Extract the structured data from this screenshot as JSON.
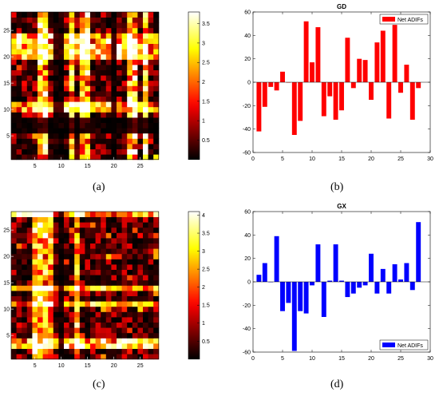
{
  "captions": {
    "a": "(a)",
    "b": "(b)",
    "c": "(c)",
    "d": "(d)"
  },
  "chart_data": [
    {
      "id": "a",
      "type": "heatmap",
      "rows": 28,
      "cols": 28,
      "x_ticks": [
        5,
        10,
        15,
        20,
        25
      ],
      "y_ticks": [
        5,
        10,
        15,
        20,
        25
      ],
      "colorbar": {
        "ticks": [
          0.5,
          1,
          1.5,
          2,
          2.5,
          3,
          3.5
        ],
        "range": [
          0,
          3.8
        ]
      },
      "colormap": "hot",
      "strong_rows": [
        10,
        11,
        20,
        21,
        22,
        23,
        24
      ],
      "strong_cols": [
        6,
        7,
        12,
        14,
        15,
        23,
        24,
        26
      ],
      "empty_rows": [
        6,
        7,
        8
      ],
      "empty_cols": [
        9,
        10,
        20
      ]
    },
    {
      "id": "b",
      "type": "bar",
      "title": "GD",
      "legend": {
        "label": "Net ADIFs",
        "position": "top-right"
      },
      "color": "#ff0000",
      "xlim": [
        0,
        30
      ],
      "ylim": [
        -60,
        60
      ],
      "x_ticks": [
        0,
        5,
        10,
        15,
        20,
        25,
        30
      ],
      "y_ticks": [
        -60,
        -40,
        -20,
        0,
        20,
        40,
        60
      ],
      "x": [
        1,
        2,
        3,
        4,
        5,
        6,
        7,
        8,
        9,
        10,
        11,
        12,
        13,
        14,
        15,
        16,
        17,
        18,
        19,
        20,
        21,
        22,
        23,
        24,
        25,
        26,
        27,
        28
      ],
      "values": [
        -42,
        -21,
        -4,
        -7,
        9,
        0,
        -45,
        -33,
        52,
        17,
        47,
        -29,
        -12,
        -32,
        -24,
        38,
        -5,
        20,
        19,
        -15,
        34,
        44,
        -31,
        49,
        -9,
        15,
        -32,
        -5
      ]
    },
    {
      "id": "c",
      "type": "heatmap",
      "rows": 28,
      "cols": 28,
      "x_ticks": [
        5,
        10,
        15,
        20,
        25
      ],
      "y_ticks": [
        5,
        10,
        15,
        20,
        25
      ],
      "colorbar": {
        "ticks": [
          0.5,
          1,
          1.5,
          2,
          2.5,
          3,
          3.5,
          4
        ],
        "range": [
          0,
          4.1
        ]
      },
      "colormap": "hot",
      "strong_rows": [
        3,
        4,
        11,
        14,
        28
      ],
      "strong_cols": [
        5,
        6,
        7,
        8,
        13
      ],
      "empty_rows": [],
      "empty_cols": [
        10
      ]
    },
    {
      "id": "d",
      "type": "bar",
      "title": "GX",
      "legend": {
        "label": "Net ADIFs",
        "position": "bottom-right"
      },
      "color": "#0000ff",
      "xlim": [
        0,
        30
      ],
      "ylim": [
        -60,
        60
      ],
      "x_ticks": [
        0,
        5,
        10,
        15,
        20,
        25,
        30
      ],
      "y_ticks": [
        -60,
        -40,
        -20,
        0,
        20,
        40,
        60
      ],
      "x": [
        1,
        2,
        3,
        4,
        5,
        6,
        7,
        8,
        9,
        10,
        11,
        12,
        13,
        14,
        15,
        16,
        17,
        18,
        19,
        20,
        21,
        22,
        23,
        24,
        25,
        26,
        27,
        28
      ],
      "values": [
        6,
        16,
        0,
        39,
        -25,
        -18,
        -59,
        -25,
        -27,
        -3,
        32,
        -30,
        1,
        32,
        1,
        -13,
        -10,
        -5,
        -3,
        24,
        -10,
        11,
        -10,
        15,
        2,
        16,
        -7,
        51
      ]
    }
  ]
}
